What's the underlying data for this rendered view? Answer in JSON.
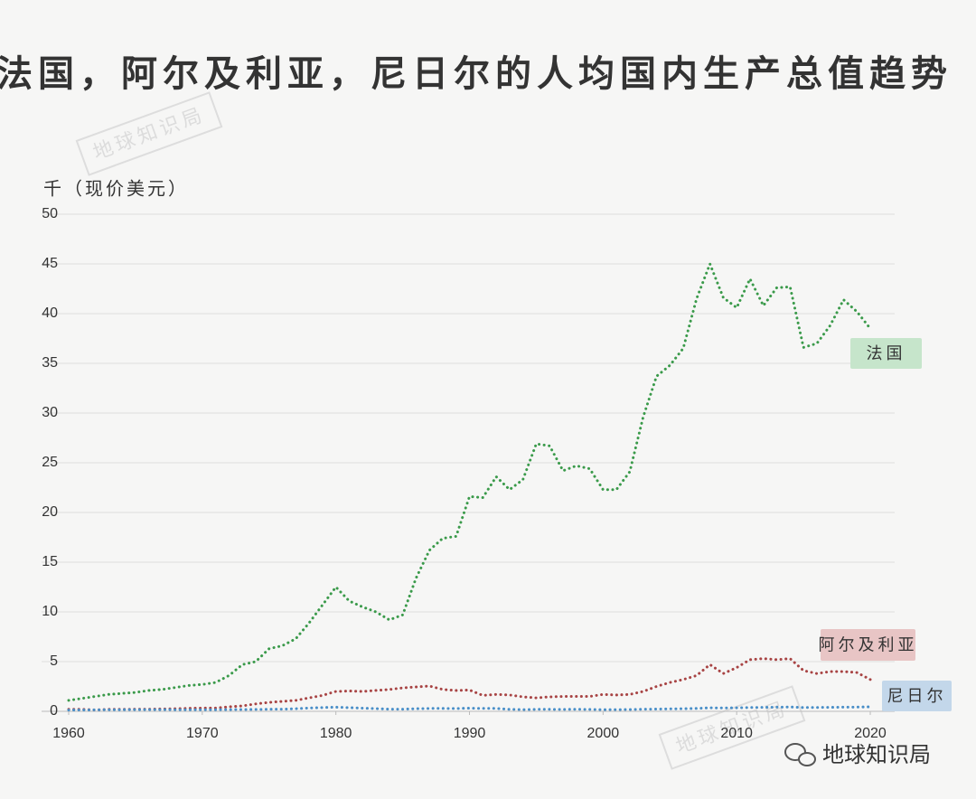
{
  "chart_data": {
    "type": "line",
    "title": "法国，阿尔及利亚，尼日尔的人均国内生产总值趋势",
    "y_label": "千（现价美元）",
    "watermarks": [
      "地球知识局",
      "地球知识局"
    ],
    "footer": "地球知识局",
    "x": [
      1960,
      1961,
      1962,
      1963,
      1964,
      1965,
      1966,
      1967,
      1968,
      1969,
      1970,
      1971,
      1972,
      1973,
      1974,
      1975,
      1976,
      1977,
      1978,
      1979,
      1980,
      1981,
      1982,
      1983,
      1984,
      1985,
      1986,
      1987,
      1988,
      1989,
      1990,
      1991,
      1992,
      1993,
      1994,
      1995,
      1996,
      1997,
      1998,
      1999,
      2000,
      2001,
      2002,
      2003,
      2004,
      2005,
      2006,
      2007,
      2008,
      2009,
      2010,
      2011,
      2012,
      2013,
      2014,
      2015,
      2016,
      2017,
      2018,
      2019,
      2020
    ],
    "xlim": [
      1960,
      2020
    ],
    "xticks": [
      1960,
      1970,
      1980,
      1990,
      2000,
      2010,
      2020
    ],
    "ylim": [
      0,
      50
    ],
    "yticks": [
      0,
      5,
      10,
      15,
      20,
      25,
      30,
      35,
      40,
      45,
      50
    ],
    "grid": true,
    "series": [
      {
        "name": "法国",
        "color": "#3a9a4a",
        "label_color": "#c6e5cb",
        "values": [
          1.1,
          1.3,
          1.5,
          1.7,
          1.8,
          1.9,
          2.1,
          2.2,
          2.4,
          2.6,
          2.7,
          2.9,
          3.6,
          4.7,
          5.0,
          6.3,
          6.6,
          7.3,
          8.9,
          10.7,
          12.5,
          11.1,
          10.5,
          10.0,
          9.2,
          9.7,
          13.4,
          16.2,
          17.4,
          17.6,
          21.6,
          21.5,
          23.6,
          22.3,
          23.3,
          26.9,
          26.7,
          24.2,
          24.7,
          24.4,
          22.3,
          22.3,
          24.1,
          29.6,
          33.7,
          34.8,
          36.5,
          41.5,
          45.0,
          41.6,
          40.6,
          43.5,
          40.8,
          42.6,
          42.7,
          36.6,
          37.0,
          38.8,
          41.4,
          40.2,
          38.5
        ]
      },
      {
        "name": "阿尔及利亚",
        "color": "#a84444",
        "label_color": "#e8c5c5",
        "values": [
          0.2,
          0.2,
          0.15,
          0.2,
          0.2,
          0.22,
          0.22,
          0.24,
          0.26,
          0.3,
          0.33,
          0.33,
          0.45,
          0.55,
          0.75,
          0.9,
          1.0,
          1.1,
          1.35,
          1.6,
          2.0,
          2.05,
          2.0,
          2.1,
          2.2,
          2.35,
          2.45,
          2.55,
          2.2,
          2.1,
          2.15,
          1.6,
          1.7,
          1.65,
          1.45,
          1.35,
          1.45,
          1.5,
          1.5,
          1.5,
          1.7,
          1.65,
          1.7,
          2.0,
          2.5,
          2.9,
          3.2,
          3.6,
          4.7,
          3.8,
          4.4,
          5.2,
          5.3,
          5.2,
          5.3,
          4.1,
          3.8,
          4.0,
          4.0,
          3.9,
          3.2
        ]
      },
      {
        "name": "尼日尔",
        "color": "#4a8fc8",
        "label_color": "#c3d7ea",
        "values": [
          0.13,
          0.14,
          0.15,
          0.16,
          0.16,
          0.17,
          0.17,
          0.17,
          0.16,
          0.16,
          0.16,
          0.16,
          0.17,
          0.18,
          0.19,
          0.21,
          0.22,
          0.26,
          0.34,
          0.38,
          0.42,
          0.37,
          0.32,
          0.27,
          0.22,
          0.22,
          0.26,
          0.29,
          0.29,
          0.28,
          0.32,
          0.29,
          0.29,
          0.2,
          0.17,
          0.2,
          0.2,
          0.19,
          0.21,
          0.19,
          0.16,
          0.17,
          0.18,
          0.21,
          0.23,
          0.25,
          0.26,
          0.29,
          0.35,
          0.34,
          0.35,
          0.38,
          0.4,
          0.42,
          0.44,
          0.38,
          0.39,
          0.4,
          0.42,
          0.43,
          0.45
        ]
      }
    ]
  }
}
